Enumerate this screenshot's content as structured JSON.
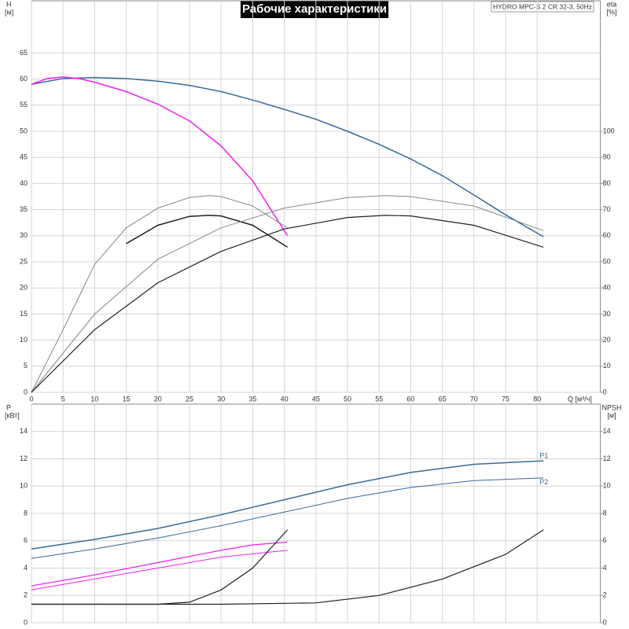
{
  "chart_data": [
    {
      "type": "line",
      "title": "Рабочие характеристики",
      "note": "HYDRO MPC-S 2 CR 32-3, 50Hz",
      "xlabel": "Q [м³/ч]",
      "ylabel": "H",
      "yunit": "[м]",
      "y2label": "eta",
      "y2unit": "[%]",
      "xlim": [
        0,
        90
      ],
      "xticks": [
        0,
        5,
        10,
        15,
        20,
        25,
        30,
        35,
        40,
        45,
        50,
        55,
        60,
        65,
        70,
        75,
        80
      ],
      "show_xtick_labels": true,
      "ylim": [
        0,
        75
      ],
      "yticks": [
        0,
        5,
        10,
        15,
        20,
        25,
        30,
        35,
        40,
        45,
        50,
        55,
        60,
        65
      ],
      "y2lim": [
        0,
        150
      ],
      "y2ticks": [
        0,
        10,
        20,
        30,
        40,
        50,
        60,
        70,
        80,
        90,
        100
      ],
      "grid": true,
      "series": [
        {
          "color": "#3a6a9a",
          "width": 1.5,
          "x": [
            0,
            5,
            10,
            15,
            20,
            25,
            30,
            35,
            40,
            45,
            50,
            55,
            60,
            65,
            70,
            75,
            81
          ],
          "values": [
            59,
            60.1,
            60.3,
            60.1,
            59.6,
            58.8,
            57.6,
            56.0,
            54.2,
            52.3,
            50.0,
            47.5,
            44.7,
            41.5,
            37.8,
            34.0,
            29.8
          ]
        },
        {
          "color": "#ee22ee",
          "width": 1.5,
          "x": [
            0,
            2.5,
            5,
            7.5,
            10,
            15,
            20,
            25,
            30,
            35,
            40.5
          ],
          "values": [
            59,
            60.1,
            60.4,
            60.1,
            59.4,
            57.6,
            55.2,
            52.0,
            47.2,
            40.5,
            30
          ]
        },
        {
          "color": "#888888",
          "width": 1,
          "axis": "y2",
          "x": [
            0,
            5,
            10,
            15,
            20,
            25,
            28,
            30,
            35,
            40.5
          ],
          "values": [
            0,
            24,
            49,
            63,
            70.6,
            74.6,
            75.4,
            75,
            71.4,
            63
          ]
        },
        {
          "color": "#222222",
          "width": 1.5,
          "axis": "y2",
          "x": [
            15,
            20,
            25,
            28,
            30,
            35,
            40.5
          ],
          "values": [
            57,
            64,
            67.4,
            67.8,
            67.6,
            64,
            55.6
          ]
        },
        {
          "color": "#888888",
          "width": 1,
          "axis": "y2",
          "x": [
            0,
            10,
            20,
            30,
            40,
            50,
            56,
            60,
            70,
            81
          ],
          "values": [
            0,
            30,
            51,
            63,
            70.6,
            74.6,
            75.4,
            75,
            71.4,
            62
          ]
        },
        {
          "color": "#222222",
          "width": 1.2,
          "axis": "y2",
          "x": [
            0,
            10,
            20,
            30,
            40,
            50,
            56,
            60,
            70,
            81
          ],
          "values": [
            0,
            24,
            42,
            54,
            62.6,
            67,
            67.8,
            67.6,
            64,
            55.6
          ]
        }
      ]
    },
    {
      "type": "line",
      "ylabel": "P",
      "yunit": "[кВт]",
      "y2label": "NPSH",
      "y2unit": "[м]",
      "xlim": [
        0,
        90
      ],
      "xticks": [
        0,
        5,
        10,
        15,
        20,
        25,
        30,
        35,
        40,
        45,
        50,
        55,
        60,
        65,
        70,
        75,
        80
      ],
      "show_xtick_labels": false,
      "ylim": [
        0,
        16
      ],
      "yticks": [
        0,
        2,
        4,
        6,
        8,
        10,
        12,
        14
      ],
      "y2lim": [
        0,
        16
      ],
      "y2ticks": [
        0,
        2,
        4,
        6,
        8,
        10,
        12,
        14
      ],
      "grid": true,
      "series": [
        {
          "name": "P1",
          "color": "#3a6a9a",
          "width": 1.5,
          "x": [
            0,
            10,
            20,
            30,
            40,
            50,
            60,
            70,
            81
          ],
          "values": [
            5.4,
            6.1,
            6.9,
            7.9,
            9.0,
            10.1,
            11.0,
            11.6,
            11.85
          ]
        },
        {
          "name": "P2",
          "color": "#3a6a9a",
          "width": 1,
          "x": [
            0,
            10,
            20,
            30,
            40,
            50,
            60,
            70,
            81
          ],
          "values": [
            4.7,
            5.4,
            6.2,
            7.1,
            8.1,
            9.1,
            9.9,
            10.4,
            10.6
          ]
        },
        {
          "color": "#ee22ee",
          "width": 1.2,
          "x": [
            0,
            10,
            20,
            30,
            35,
            40.5
          ],
          "values": [
            2.7,
            3.5,
            4.4,
            5.3,
            5.7,
            5.9
          ]
        },
        {
          "color": "#ee22ee",
          "width": 1,
          "x": [
            0,
            10,
            20,
            30,
            40.5
          ],
          "values": [
            2.4,
            3.2,
            4.0,
            4.8,
            5.3
          ]
        },
        {
          "color": "#222222",
          "width": 1.2,
          "axis": "y2",
          "x": [
            0,
            20,
            25,
            30,
            35,
            40.5
          ],
          "values": [
            1.35,
            1.35,
            1.5,
            2.4,
            4.0,
            6.8
          ]
        },
        {
          "color": "#222222",
          "width": 1.2,
          "axis": "y2",
          "x": [
            0,
            30,
            45,
            55,
            65,
            75,
            81
          ],
          "values": [
            1.35,
            1.35,
            1.45,
            2.0,
            3.2,
            5.0,
            6.8
          ]
        }
      ]
    }
  ]
}
